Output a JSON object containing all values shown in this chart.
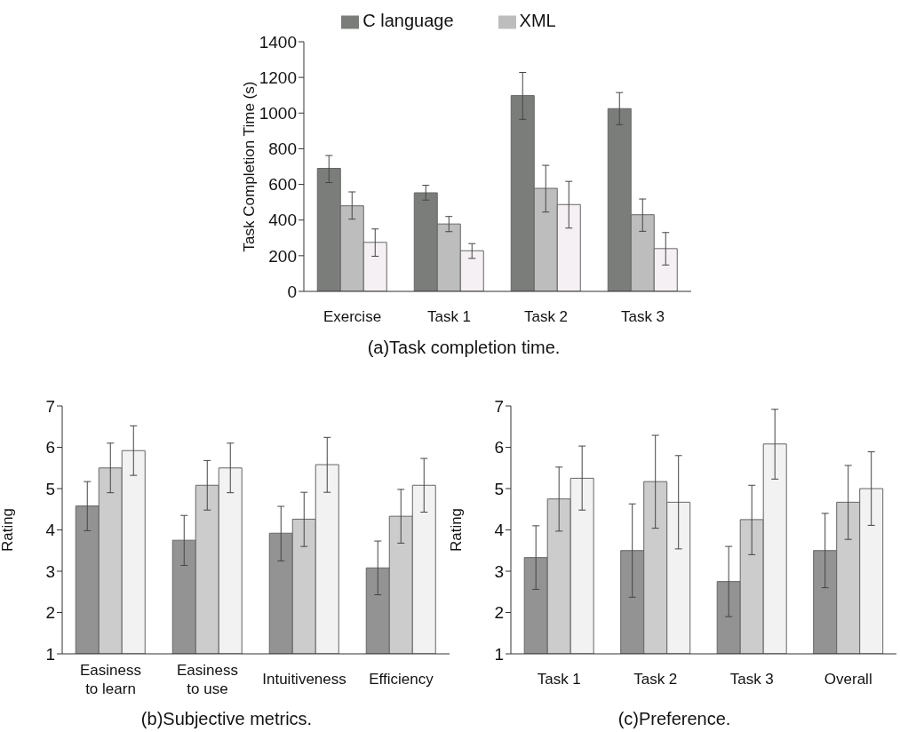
{
  "chart_data": [
    {
      "type": "bar",
      "categories": [
        "Exercise",
        "Task 1",
        "Task 2",
        "Task 3"
      ],
      "ylabel": "Task Completion Time (s)",
      "ylim": [
        0,
        1400
      ],
      "yticks": [
        0,
        200,
        400,
        600,
        800,
        1000,
        1200,
        1400
      ],
      "legend": "top",
      "annotations": [
        "(a)Task completion time."
      ],
      "series": [
        {
          "name": "C language",
          "color": "#7b7d7b",
          "values": [
            690,
            553,
            1098,
            1025
          ],
          "errors": [
            [
              610,
              762
            ],
            [
              512,
              595
            ],
            [
              965,
              1228
            ],
            [
              935,
              1115
            ]
          ]
        },
        {
          "name": "XML",
          "color": "#bdbdbd",
          "values": [
            480,
            378,
            578,
            430
          ],
          "errors": [
            [
              405,
              558
            ],
            [
              335,
              420
            ],
            [
              445,
              707
            ],
            [
              337,
              518
            ]
          ]
        },
        {
          "color": "#f5f0f3",
          "values": [
            275,
            228,
            487,
            240
          ],
          "errors": [
            [
              197,
              350
            ],
            [
              185,
              268
            ],
            [
              355,
              617
            ],
            [
              148,
              330
            ]
          ]
        }
      ]
    },
    {
      "type": "bar",
      "categories": [
        "Easiness to learn",
        "Easiness to use",
        "Intuitiveness",
        "Efficiency"
      ],
      "ylabel": "Rating",
      "ylim": [
        1,
        7
      ],
      "yticks": [
        1,
        2,
        3,
        4,
        5,
        6,
        7
      ],
      "annotations": [
        "(b)Subjective metrics."
      ],
      "series": [
        {
          "color": "#939393",
          "values": [
            4.58,
            3.75,
            3.92,
            3.08
          ],
          "errors": [
            [
              3.98,
              5.17
            ],
            [
              3.14,
              4.35
            ],
            [
              3.25,
              4.57
            ],
            [
              2.43,
              3.73
            ]
          ]
        },
        {
          "color": "#cccccc",
          "values": [
            5.5,
            5.08,
            4.26,
            4.33
          ],
          "errors": [
            [
              4.9,
              6.1
            ],
            [
              4.48,
              5.68
            ],
            [
              3.6,
              4.91
            ],
            [
              3.68,
              4.98
            ]
          ]
        },
        {
          "color": "#f2f2f2",
          "values": [
            5.92,
            5.5,
            5.58,
            5.08
          ],
          "errors": [
            [
              5.32,
              6.52
            ],
            [
              4.9,
              6.1
            ],
            [
              4.91,
              6.24
            ],
            [
              4.43,
              5.73
            ]
          ]
        }
      ]
    },
    {
      "type": "bar",
      "categories": [
        "Task 1",
        "Task 2",
        "Task 3",
        "Overall"
      ],
      "ylabel": "Rating",
      "ylim": [
        1,
        7
      ],
      "yticks": [
        1,
        2,
        3,
        4,
        5,
        6,
        7
      ],
      "annotations": [
        "(c)Preference."
      ],
      "series": [
        {
          "color": "#939393",
          "values": [
            3.33,
            3.5,
            2.75,
            3.5
          ],
          "errors": [
            [
              2.56,
              4.1
            ],
            [
              2.37,
              4.63
            ],
            [
              1.9,
              3.6
            ],
            [
              2.6,
              4.4
            ]
          ]
        },
        {
          "color": "#cccccc",
          "values": [
            4.75,
            5.17,
            4.25,
            4.67
          ],
          "errors": [
            [
              3.97,
              5.52
            ],
            [
              4.04,
              6.29
            ],
            [
              3.4,
              5.08
            ],
            [
              3.77,
              5.56
            ]
          ]
        },
        {
          "color": "#f2f2f2",
          "values": [
            5.25,
            4.67,
            6.08,
            5.0
          ],
          "errors": [
            [
              4.48,
              6.03
            ],
            [
              3.54,
              5.8
            ],
            [
              5.23,
              6.92
            ],
            [
              4.11,
              5.89
            ]
          ]
        }
      ]
    }
  ]
}
